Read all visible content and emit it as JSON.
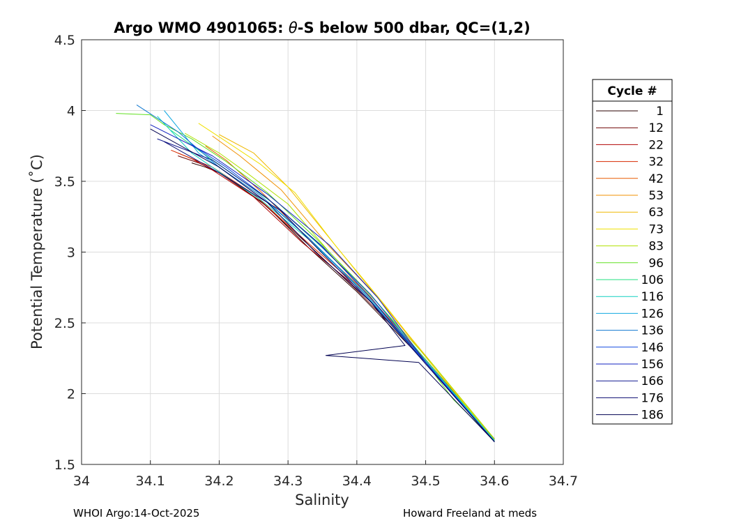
{
  "chart_data": {
    "type": "line",
    "title_prefix": "Argo WMO 4901065: ",
    "title_theta": "θ",
    "title_suffix": "-S below 500 dbar,  QC=(1,2)",
    "xlabel": "Salinity",
    "ylabel": "Potential Temperature (˚C)",
    "xlim": [
      34.0,
      34.7
    ],
    "ylim": [
      1.5,
      4.5
    ],
    "xticks": [
      "34",
      "34.1",
      "34.2",
      "34.3",
      "34.4",
      "34.5",
      "34.6",
      "34.7"
    ],
    "yticks": [
      "1.5",
      "2",
      "2.5",
      "3",
      "3.5",
      "4",
      "4.5"
    ],
    "xtick_values": [
      34.0,
      34.1,
      34.2,
      34.3,
      34.4,
      34.5,
      34.6,
      34.7
    ],
    "ytick_values": [
      1.5,
      2.0,
      2.5,
      3.0,
      3.5,
      4.0,
      4.5
    ],
    "grid": true,
    "legend": {
      "title": "Cycle #",
      "placement": "right",
      "entries": [
        "1",
        "12",
        "22",
        "32",
        "42",
        "53",
        "63",
        "73",
        "83",
        "96",
        "106",
        "116",
        "126",
        "136",
        "146",
        "156",
        "166",
        "176",
        "186"
      ],
      "colors": [
        "#2a0000",
        "#6e0000",
        "#b00000",
        "#d82a00",
        "#e85a00",
        "#f09000",
        "#f0b800",
        "#f0e000",
        "#b0e000",
        "#60e020",
        "#20e080",
        "#10d0c0",
        "#10a8e0",
        "#1078d0",
        "#1048e0",
        "#1020c0",
        "#101890",
        "#0a0a70",
        "#000050"
      ]
    },
    "series": [
      {
        "name": "1",
        "x": [
          34.6,
          34.5,
          34.4,
          34.33,
          34.27,
          34.22,
          34.2,
          34.18,
          34.16
        ],
        "y": [
          1.66,
          2.22,
          2.72,
          3.03,
          3.32,
          3.5,
          3.56,
          3.6,
          3.63
        ]
      },
      {
        "name": "12",
        "x": [
          34.6,
          34.5,
          34.4,
          34.33,
          34.26,
          34.2,
          34.17,
          34.14
        ],
        "y": [
          1.68,
          2.24,
          2.73,
          3.05,
          3.36,
          3.56,
          3.63,
          3.68
        ]
      },
      {
        "name": "22",
        "x": [
          34.6,
          34.5,
          34.4,
          34.32,
          34.25,
          34.19,
          34.16,
          34.14
        ],
        "y": [
          1.68,
          2.24,
          2.75,
          3.07,
          3.39,
          3.58,
          3.66,
          3.7
        ]
      },
      {
        "name": "32",
        "x": [
          34.6,
          34.5,
          34.41,
          34.33,
          34.25,
          34.19,
          34.15,
          34.13
        ],
        "y": [
          1.67,
          2.23,
          2.72,
          3.06,
          3.41,
          3.6,
          3.68,
          3.72
        ]
      },
      {
        "name": "42",
        "x": [
          34.6,
          34.5,
          34.41,
          34.33,
          34.26,
          34.21,
          34.18
        ],
        "y": [
          1.67,
          2.24,
          2.73,
          3.09,
          3.43,
          3.65,
          3.75
        ]
      },
      {
        "name": "53",
        "x": [
          34.6,
          34.51,
          34.43,
          34.36,
          34.29,
          34.23,
          34.19
        ],
        "y": [
          1.67,
          2.2,
          2.68,
          3.04,
          3.44,
          3.68,
          3.82
        ]
      },
      {
        "name": "63",
        "x": [
          34.6,
          34.51,
          34.43,
          34.36,
          34.3,
          34.25,
          34.2
        ],
        "y": [
          1.67,
          2.21,
          2.68,
          3.1,
          3.46,
          3.7,
          3.83
        ]
      },
      {
        "name": "73",
        "x": [
          34.6,
          34.51,
          34.44,
          34.37,
          34.31,
          34.26,
          34.22,
          34.17
        ],
        "y": [
          1.67,
          2.2,
          2.63,
          3.04,
          3.42,
          3.62,
          3.75,
          3.91
        ]
      },
      {
        "name": "83",
        "x": [
          34.6,
          34.51,
          34.43,
          34.36,
          34.3,
          34.24,
          34.2,
          34.15
        ],
        "y": [
          1.68,
          2.21,
          2.64,
          3.0,
          3.34,
          3.56,
          3.7,
          3.84
        ]
      },
      {
        "name": "96",
        "x": [
          34.6,
          34.54,
          34.5,
          34.42,
          34.34,
          34.27,
          34.21,
          34.16,
          34.12,
          34.1,
          34.05
        ],
        "y": [
          1.67,
          1.96,
          2.22,
          2.7,
          3.1,
          3.42,
          3.64,
          3.8,
          3.9,
          3.97,
          3.98
        ]
      },
      {
        "name": "106",
        "x": [
          34.6,
          34.5,
          34.42,
          34.35,
          34.28,
          34.22,
          34.17,
          34.13
        ],
        "y": [
          1.67,
          2.24,
          2.7,
          3.03,
          3.34,
          3.55,
          3.72,
          3.86
        ]
      },
      {
        "name": "116",
        "x": [
          34.6,
          34.5,
          34.41,
          34.33,
          34.26,
          34.22,
          34.16,
          34.11
        ],
        "y": [
          1.67,
          2.23,
          2.72,
          3.09,
          3.37,
          3.5,
          3.7,
          3.96
        ]
      },
      {
        "name": "126",
        "x": [
          34.6,
          34.5,
          34.41,
          34.33,
          34.27,
          34.22,
          34.17,
          34.12
        ],
        "y": [
          1.66,
          2.23,
          2.72,
          3.1,
          3.35,
          3.53,
          3.7,
          4.0
        ]
      },
      {
        "name": "136",
        "x": [
          34.6,
          34.5,
          34.41,
          34.33,
          34.26,
          34.2,
          34.14,
          34.08
        ],
        "y": [
          1.66,
          2.22,
          2.71,
          3.1,
          3.4,
          3.6,
          3.85,
          4.04
        ]
      },
      {
        "name": "146",
        "x": [
          34.6,
          34.5,
          34.42,
          34.34,
          34.27,
          34.21,
          34.16
        ],
        "y": [
          1.66,
          2.22,
          2.7,
          3.08,
          3.38,
          3.6,
          3.76
        ]
      },
      {
        "name": "156",
        "x": [
          34.6,
          34.5,
          34.43,
          34.36,
          34.27,
          34.19,
          34.1
        ],
        "y": [
          1.66,
          2.22,
          2.68,
          3.05,
          3.41,
          3.68,
          3.9
        ]
      },
      {
        "name": "166",
        "x": [
          34.6,
          34.5,
          34.42,
          34.35,
          34.27,
          34.19,
          34.11
        ],
        "y": [
          1.66,
          2.21,
          2.68,
          3.04,
          3.38,
          3.65,
          3.8
        ]
      },
      {
        "name": "176",
        "x": [
          34.6,
          34.5,
          34.42,
          34.35,
          34.29,
          34.2,
          34.12
        ],
        "y": [
          1.66,
          2.21,
          2.65,
          2.99,
          3.29,
          3.56,
          3.78
        ]
      },
      {
        "name": "186",
        "x": [
          34.6,
          34.49,
          34.355,
          34.47,
          34.42,
          34.34,
          34.27,
          34.2,
          34.1
        ],
        "y": [
          1.66,
          2.22,
          2.27,
          2.34,
          2.65,
          3.0,
          3.35,
          3.6,
          3.87
        ]
      }
    ]
  },
  "footer": {
    "left": "WHOI Argo:14-Oct-2025",
    "right": "Howard Freeland at meds"
  }
}
